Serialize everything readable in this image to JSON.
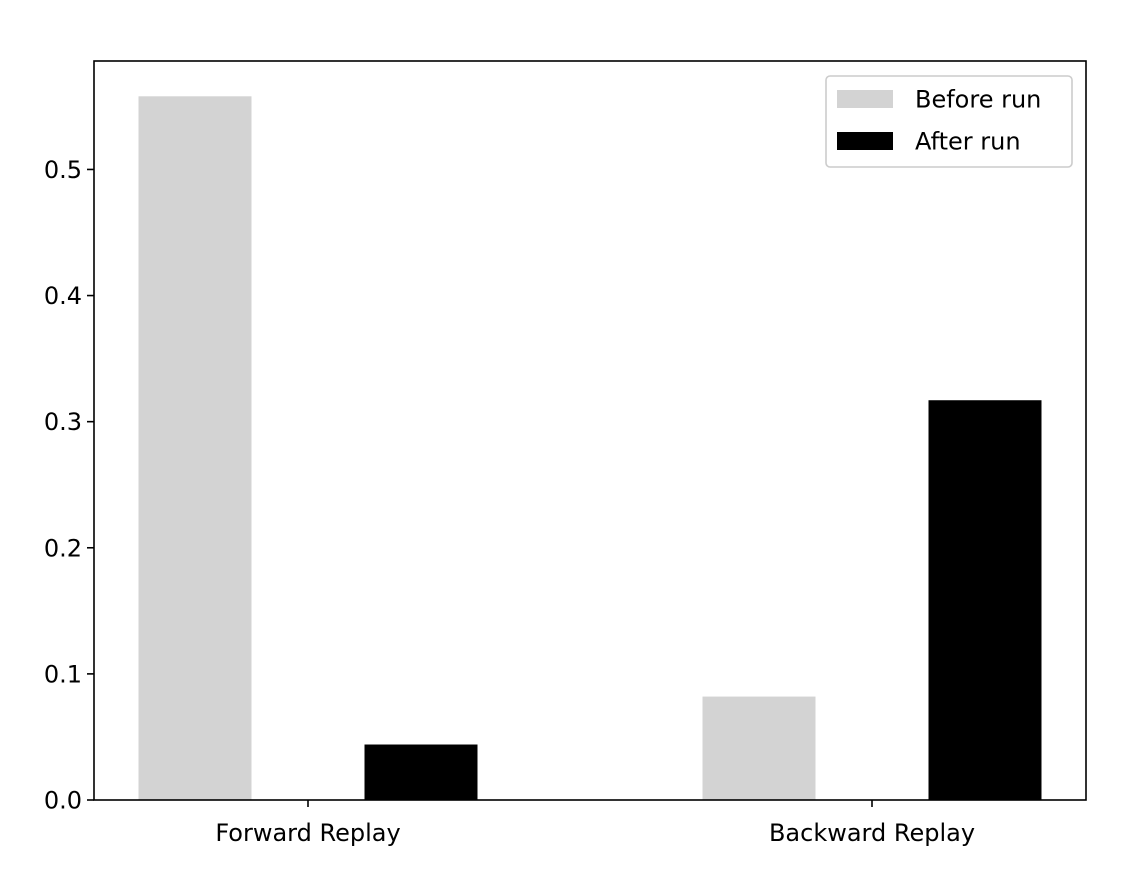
{
  "chart_data": {
    "type": "bar",
    "categories": [
      "Forward Replay",
      "Backward Replay"
    ],
    "series": [
      {
        "name": "Before run",
        "color": "#d3d3d3",
        "values": [
          0.558,
          0.082
        ]
      },
      {
        "name": "After run",
        "color": "#000000",
        "values": [
          0.044,
          0.317
        ]
      }
    ],
    "title": "",
    "xlabel": "",
    "ylabel": "",
    "ylim": [
      0,
      0.586
    ],
    "yticks": [
      0.0,
      0.1,
      0.2,
      0.3,
      0.4,
      0.5
    ],
    "ytick_labels": [
      "0.0",
      "0.1",
      "0.2",
      "0.3",
      "0.4",
      "0.5"
    ],
    "grid": false,
    "legend": "top-right"
  }
}
